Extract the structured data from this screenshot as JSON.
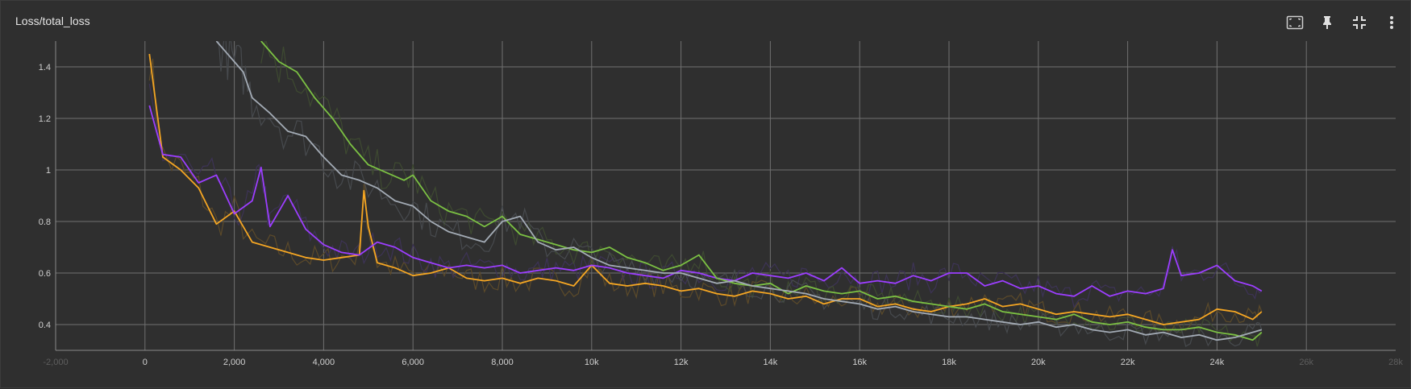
{
  "card": {
    "title": "Loss/total_loss",
    "toolbar": [
      {
        "name": "fit-domain-icon",
        "label": ""
      },
      {
        "name": "pin-icon",
        "label": ""
      },
      {
        "name": "collapse-icon",
        "label": ""
      },
      {
        "name": "more-vert-icon",
        "label": ""
      }
    ]
  },
  "chart_data": {
    "type": "line",
    "title": "Loss/total_loss",
    "xlabel": "",
    "ylabel": "",
    "xlim": [
      -2000,
      28000
    ],
    "ylim": [
      0.3,
      1.5
    ],
    "grid": true,
    "x_ticks": [
      {
        "value": -2000,
        "label": "-2,000",
        "faded": true
      },
      {
        "value": 0,
        "label": "0"
      },
      {
        "value": 2000,
        "label": "2,000"
      },
      {
        "value": 4000,
        "label": "4,000"
      },
      {
        "value": 6000,
        "label": "6,000"
      },
      {
        "value": 8000,
        "label": "8,000"
      },
      {
        "value": 10000,
        "label": "10k"
      },
      {
        "value": 12000,
        "label": "12k"
      },
      {
        "value": 14000,
        "label": "14k"
      },
      {
        "value": 16000,
        "label": "16k"
      },
      {
        "value": 18000,
        "label": "18k"
      },
      {
        "value": 20000,
        "label": "20k"
      },
      {
        "value": 22000,
        "label": "22k"
      },
      {
        "value": 24000,
        "label": "24k"
      },
      {
        "value": 26000,
        "label": "26k",
        "faded": true
      },
      {
        "value": 28000,
        "label": "28k",
        "faded": true
      }
    ],
    "y_ticks": [
      {
        "value": 0.4,
        "label": "0.4"
      },
      {
        "value": 0.6,
        "label": "0.6"
      },
      {
        "value": 0.8,
        "label": "0.8"
      },
      {
        "value": 1.0,
        "label": "1"
      },
      {
        "value": 1.2,
        "label": "1.2"
      },
      {
        "value": 1.4,
        "label": "1.4"
      }
    ],
    "series": [
      {
        "color": "#f5a623",
        "raw_color": "#5c4a2a",
        "x": [
          100,
          400,
          800,
          1200,
          1600,
          2000,
          2400,
          2800,
          3200,
          3600,
          4000,
          4400,
          4800,
          4900,
          5000,
          5200,
          5600,
          6000,
          6400,
          6800,
          7200,
          7600,
          8000,
          8400,
          8800,
          9200,
          9600,
          10000,
          10400,
          10800,
          11200,
          11600,
          12000,
          12400,
          12800,
          13200,
          13600,
          14000,
          14400,
          14800,
          15200,
          15600,
          16000,
          16400,
          16800,
          17200,
          17600,
          18000,
          18400,
          18800,
          19200,
          19600,
          20000,
          20400,
          20800,
          21200,
          21600,
          22000,
          22400,
          22800,
          23200,
          23600,
          24000,
          24400,
          24800,
          25000
        ],
        "y": [
          1.45,
          1.05,
          1.0,
          0.93,
          0.79,
          0.84,
          0.72,
          0.7,
          0.68,
          0.66,
          0.65,
          0.66,
          0.67,
          0.92,
          0.78,
          0.64,
          0.62,
          0.59,
          0.6,
          0.62,
          0.58,
          0.57,
          0.58,
          0.56,
          0.58,
          0.57,
          0.55,
          0.63,
          0.56,
          0.55,
          0.56,
          0.55,
          0.53,
          0.54,
          0.52,
          0.51,
          0.53,
          0.52,
          0.5,
          0.51,
          0.48,
          0.5,
          0.5,
          0.47,
          0.48,
          0.46,
          0.45,
          0.47,
          0.48,
          0.5,
          0.47,
          0.48,
          0.46,
          0.44,
          0.45,
          0.44,
          0.43,
          0.44,
          0.42,
          0.4,
          0.41,
          0.42,
          0.46,
          0.45,
          0.42,
          0.45
        ]
      },
      {
        "color": "#9c3eff",
        "raw_color": "#3d3356",
        "x": [
          100,
          400,
          800,
          1200,
          1600,
          2000,
          2400,
          2600,
          2800,
          3200,
          3600,
          4000,
          4400,
          4800,
          5200,
          5600,
          6000,
          6400,
          6800,
          7200,
          7600,
          8000,
          8400,
          8800,
          9200,
          9600,
          10000,
          10400,
          10800,
          11200,
          11600,
          12000,
          12400,
          12800,
          13200,
          13600,
          14000,
          14400,
          14800,
          15200,
          15600,
          16000,
          16400,
          16800,
          17200,
          17600,
          18000,
          18400,
          18800,
          19200,
          19600,
          20000,
          20400,
          20800,
          21200,
          21600,
          22000,
          22400,
          22800,
          23000,
          23200,
          23600,
          24000,
          24400,
          24800,
          25000
        ],
        "y": [
          1.25,
          1.06,
          1.05,
          0.95,
          0.98,
          0.83,
          0.88,
          1.01,
          0.78,
          0.9,
          0.77,
          0.71,
          0.68,
          0.67,
          0.72,
          0.7,
          0.66,
          0.64,
          0.62,
          0.63,
          0.62,
          0.63,
          0.6,
          0.61,
          0.62,
          0.61,
          0.63,
          0.62,
          0.6,
          0.59,
          0.58,
          0.61,
          0.6,
          0.58,
          0.57,
          0.6,
          0.59,
          0.58,
          0.6,
          0.57,
          0.62,
          0.56,
          0.57,
          0.56,
          0.59,
          0.57,
          0.6,
          0.6,
          0.55,
          0.57,
          0.54,
          0.55,
          0.52,
          0.51,
          0.55,
          0.51,
          0.53,
          0.52,
          0.54,
          0.69,
          0.59,
          0.6,
          0.63,
          0.57,
          0.55,
          0.53
        ]
      },
      {
        "color": "#7bc043",
        "raw_color": "#3e4a31",
        "x": [
          2600,
          3000,
          3400,
          3800,
          4200,
          4600,
          5000,
          5400,
          5800,
          6000,
          6400,
          6800,
          7200,
          7600,
          8000,
          8400,
          8800,
          9200,
          9600,
          10000,
          10400,
          10800,
          11200,
          11600,
          12000,
          12400,
          12800,
          13200,
          13600,
          14000,
          14400,
          14800,
          15200,
          15600,
          16000,
          16400,
          16800,
          17200,
          17600,
          18000,
          18400,
          18800,
          19200,
          19600,
          20000,
          20400,
          20800,
          21200,
          21600,
          22000,
          22400,
          22800,
          23200,
          23600,
          24000,
          24400,
          24800,
          25000
        ],
        "y": [
          1.5,
          1.42,
          1.38,
          1.28,
          1.2,
          1.1,
          1.02,
          0.99,
          0.96,
          0.98,
          0.88,
          0.84,
          0.82,
          0.78,
          0.82,
          0.75,
          0.73,
          0.71,
          0.69,
          0.68,
          0.7,
          0.66,
          0.64,
          0.61,
          0.63,
          0.67,
          0.58,
          0.56,
          0.55,
          0.56,
          0.52,
          0.55,
          0.53,
          0.52,
          0.53,
          0.5,
          0.51,
          0.49,
          0.48,
          0.47,
          0.46,
          0.48,
          0.45,
          0.44,
          0.43,
          0.42,
          0.44,
          0.41,
          0.4,
          0.41,
          0.39,
          0.38,
          0.38,
          0.39,
          0.37,
          0.36,
          0.34,
          0.37
        ]
      },
      {
        "color": "#a3abb5",
        "raw_color": "#474a4e",
        "x": [
          1600,
          1800,
          2000,
          2200,
          2400,
          2800,
          3200,
          3600,
          4000,
          4400,
          4800,
          5200,
          5600,
          6000,
          6400,
          6800,
          7200,
          7600,
          8000,
          8400,
          8800,
          9200,
          9600,
          10000,
          10400,
          10800,
          11200,
          11600,
          12000,
          12400,
          12800,
          13200,
          13600,
          14000,
          14400,
          14800,
          15200,
          15600,
          16000,
          16400,
          16800,
          17200,
          17600,
          18000,
          18400,
          18800,
          19200,
          19600,
          20000,
          20400,
          20800,
          21200,
          21600,
          22000,
          22400,
          22800,
          23200,
          23600,
          24000,
          24400,
          24800,
          25000
        ],
        "y": [
          1.5,
          1.46,
          1.42,
          1.38,
          1.28,
          1.22,
          1.15,
          1.13,
          1.05,
          0.98,
          0.96,
          0.93,
          0.88,
          0.86,
          0.8,
          0.76,
          0.74,
          0.72,
          0.8,
          0.82,
          0.72,
          0.69,
          0.7,
          0.66,
          0.63,
          0.62,
          0.61,
          0.6,
          0.6,
          0.58,
          0.56,
          0.57,
          0.55,
          0.54,
          0.53,
          0.52,
          0.5,
          0.49,
          0.48,
          0.46,
          0.47,
          0.45,
          0.44,
          0.43,
          0.43,
          0.42,
          0.41,
          0.4,
          0.41,
          0.39,
          0.4,
          0.38,
          0.37,
          0.38,
          0.36,
          0.37,
          0.35,
          0.36,
          0.34,
          0.35,
          0.37,
          0.38
        ]
      }
    ]
  }
}
